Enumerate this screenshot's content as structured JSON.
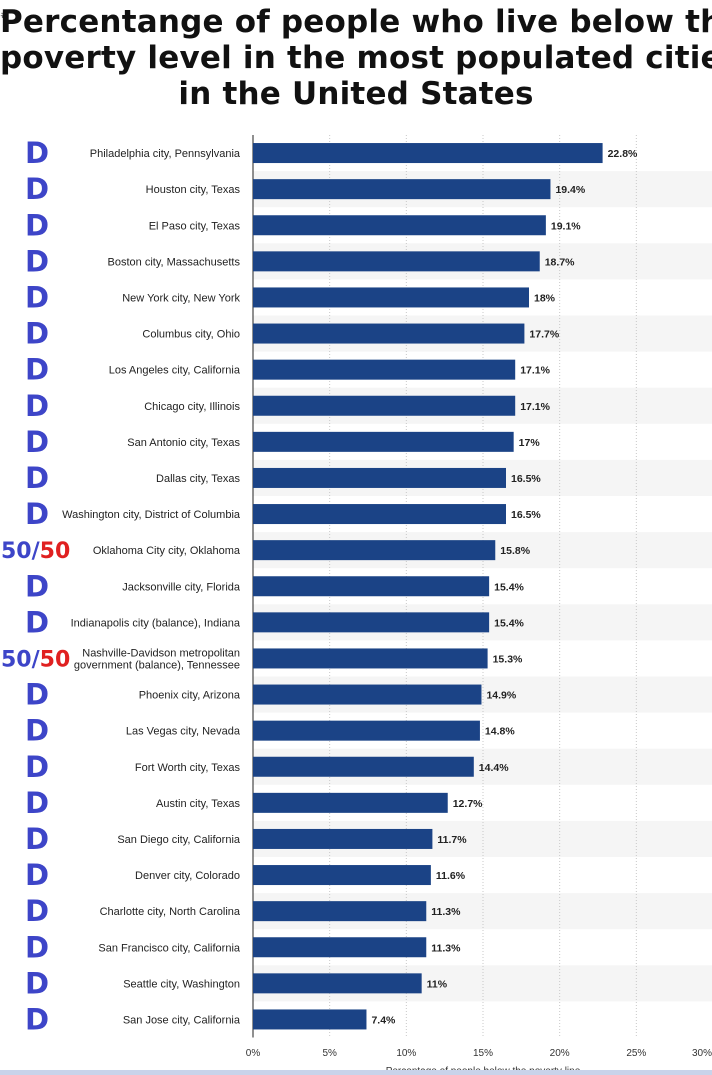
{
  "title_lines": [
    "Percentange of people who live below the",
    "poverty level in the most populated cities",
    "in the United States"
  ],
  "edge_mark": "#",
  "colors": {
    "bar": "#1b4386",
    "stripe": "#f5f5f5",
    "d_label": "#3d45c8",
    "r_label": "#e02020",
    "grid": "#c8c8c8",
    "axis": "#222222"
  },
  "chart_data": {
    "type": "bar",
    "orientation": "horizontal",
    "title": "Percentange of people who live below the poverty level in the most populated cities in the United States",
    "xlabel": "Percentage of people below the poverty line",
    "ylabel": "",
    "xlim": [
      0,
      30
    ],
    "xticks": [
      0,
      5,
      10,
      15,
      20,
      25,
      30
    ],
    "tick_suffix": "%",
    "grid": true,
    "categories": [
      "Philadelphia city, Pennsylvania",
      "Houston city, Texas",
      "El Paso city, Texas",
      "Boston city, Massachusetts",
      "New York city, New York",
      "Columbus city, Ohio",
      "Los Angeles city, California",
      "Chicago city, Illinois",
      "San Antonio city, Texas",
      "Dallas city, Texas",
      "Washington city, District of Columbia",
      "Oklahoma City city, Oklahoma",
      "Jacksonville city, Florida",
      "Indianapolis city (balance), Indiana",
      "Nashville-Davidson metropolitan government (balance), Tennessee",
      "Phoenix city, Arizona",
      "Las Vegas city, Nevada",
      "Fort Worth city, Texas",
      "Austin city, Texas",
      "San Diego city, California",
      "Denver city, Colorado",
      "Charlotte city, North Carolina",
      "San Francisco city, California",
      "Seattle city, Washington",
      "San Jose city, California"
    ],
    "category_lines": [
      [
        "Philadelphia city, Pennsylvania"
      ],
      [
        "Houston city, Texas"
      ],
      [
        "El Paso city, Texas"
      ],
      [
        "Boston city, Massachusetts"
      ],
      [
        "New York city, New York"
      ],
      [
        "Columbus city, Ohio"
      ],
      [
        "Los Angeles city, California"
      ],
      [
        "Chicago city, Illinois"
      ],
      [
        "San Antonio city, Texas"
      ],
      [
        "Dallas city, Texas"
      ],
      [
        "Washington city, District of Columbia"
      ],
      [
        "Oklahoma City city, Oklahoma"
      ],
      [
        "Jacksonville city, Florida"
      ],
      [
        "Indianapolis city (balance), Indiana"
      ],
      [
        "Nashville-Davidson metropolitan",
        "government (balance), Tennessee"
      ],
      [
        "Phoenix city, Arizona"
      ],
      [
        "Las Vegas city, Nevada"
      ],
      [
        "Fort Worth city, Texas"
      ],
      [
        "Austin city, Texas"
      ],
      [
        "San Diego city, California"
      ],
      [
        "Denver city, Colorado"
      ],
      [
        "Charlotte city, North Carolina"
      ],
      [
        "San Francisco city, California"
      ],
      [
        "Seattle city, Washington"
      ],
      [
        "San Jose city, California"
      ]
    ],
    "values": [
      22.8,
      19.4,
      19.1,
      18.7,
      18,
      17.7,
      17.1,
      17.1,
      17,
      16.5,
      16.5,
      15.8,
      15.4,
      15.4,
      15.3,
      14.9,
      14.8,
      14.4,
      12.7,
      11.7,
      11.6,
      11.3,
      11.3,
      11,
      7.4
    ],
    "value_labels": [
      "22.8%",
      "19.4%",
      "19.1%",
      "18.7%",
      "18%",
      "17.7%",
      "17.1%",
      "17.1%",
      "17%",
      "16.5%",
      "16.5%",
      "15.8%",
      "15.4%",
      "15.4%",
      "15.3%",
      "14.9%",
      "14.8%",
      "14.4%",
      "12.7%",
      "11.7%",
      "11.6%",
      "11.3%",
      "11.3%",
      "11%",
      "7.4%"
    ],
    "annotations": [
      "D",
      "D",
      "D",
      "D",
      "D",
      "D",
      "D",
      "D",
      "D",
      "D",
      "D",
      "50/50",
      "D",
      "D",
      "50/50",
      "D",
      "D",
      "D",
      "D",
      "D",
      "D",
      "D",
      "D",
      "D",
      "D"
    ],
    "annotation_split": {
      "left": "50/",
      "right": "50"
    }
  }
}
